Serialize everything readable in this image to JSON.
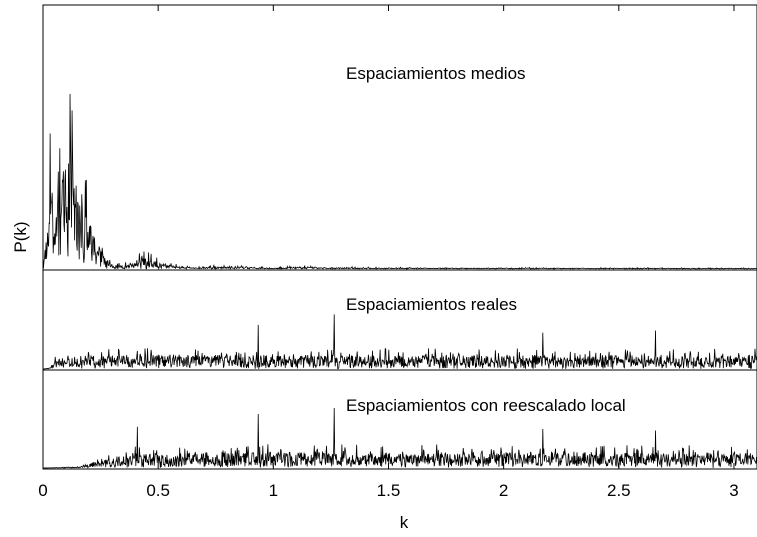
{
  "chart_data": {
    "type": "line",
    "xlabel": "k",
    "ylabel": "P(k)",
    "xlim": [
      0,
      3.1
    ],
    "xticks": [
      0,
      0.5,
      1,
      1.5,
      2,
      2.5,
      3
    ],
    "xtick_labels": [
      "0",
      "0.5",
      "1",
      "1.5",
      "2",
      "2.5",
      "3"
    ],
    "grid": false,
    "series": [
      {
        "label": "Espaciamientos medios",
        "color": "#000000",
        "profile": [
          {
            "k": 0.0,
            "p": 0.0
          },
          {
            "k": 0.03,
            "p": 0.6
          },
          {
            "k": 0.06,
            "p": 0.5
          },
          {
            "k": 0.09,
            "p": 0.85
          },
          {
            "k": 0.11,
            "p": 1.0
          },
          {
            "k": 0.13,
            "p": 0.7
          },
          {
            "k": 0.16,
            "p": 0.55
          },
          {
            "k": 0.2,
            "p": 0.4
          },
          {
            "k": 0.25,
            "p": 0.15
          },
          {
            "k": 0.3,
            "p": 0.02
          },
          {
            "k": 0.35,
            "p": 0.03
          },
          {
            "k": 0.44,
            "p": 0.08
          },
          {
            "k": 0.55,
            "p": 0.03
          },
          {
            "k": 0.65,
            "p": 0.01
          },
          {
            "k": 0.85,
            "p": 0.02
          },
          {
            "k": 1.0,
            "p": 0.005
          },
          {
            "k": 1.1,
            "p": 0.015
          },
          {
            "k": 1.4,
            "p": 0.008
          },
          {
            "k": 3.1,
            "p": 0.005
          }
        ]
      },
      {
        "label": "Espaciamientos reales",
        "color": "#000000",
        "profile": [
          {
            "k": 0.0,
            "p": 0.0
          },
          {
            "k": 0.03,
            "p": 0.02
          },
          {
            "k": 0.06,
            "p": 0.2
          },
          {
            "k": 0.2,
            "p": 0.25
          },
          {
            "k": 1.2,
            "p": 0.25
          },
          {
            "k": 3.1,
            "p": 0.24
          }
        ],
        "peaks": [
          {
            "k": 0.935,
            "p": 0.63
          },
          {
            "k": 1.265,
            "p": 0.78
          },
          {
            "k": 2.17,
            "p": 0.52
          },
          {
            "k": 2.66,
            "p": 0.55
          }
        ]
      },
      {
        "label": "Espaciamientos con reescalado local",
        "color": "#000000",
        "profile": [
          {
            "k": 0.0,
            "p": 0.0
          },
          {
            "k": 0.15,
            "p": 0.02
          },
          {
            "k": 0.25,
            "p": 0.12
          },
          {
            "k": 0.4,
            "p": 0.25
          },
          {
            "k": 0.9,
            "p": 0.27
          },
          {
            "k": 3.1,
            "p": 0.25
          }
        ],
        "peaks": [
          {
            "k": 0.41,
            "p": 0.55
          },
          {
            "k": 0.935,
            "p": 0.72
          },
          {
            "k": 1.265,
            "p": 0.8
          },
          {
            "k": 2.17,
            "p": 0.52
          },
          {
            "k": 2.66,
            "p": 0.5
          }
        ]
      }
    ]
  }
}
